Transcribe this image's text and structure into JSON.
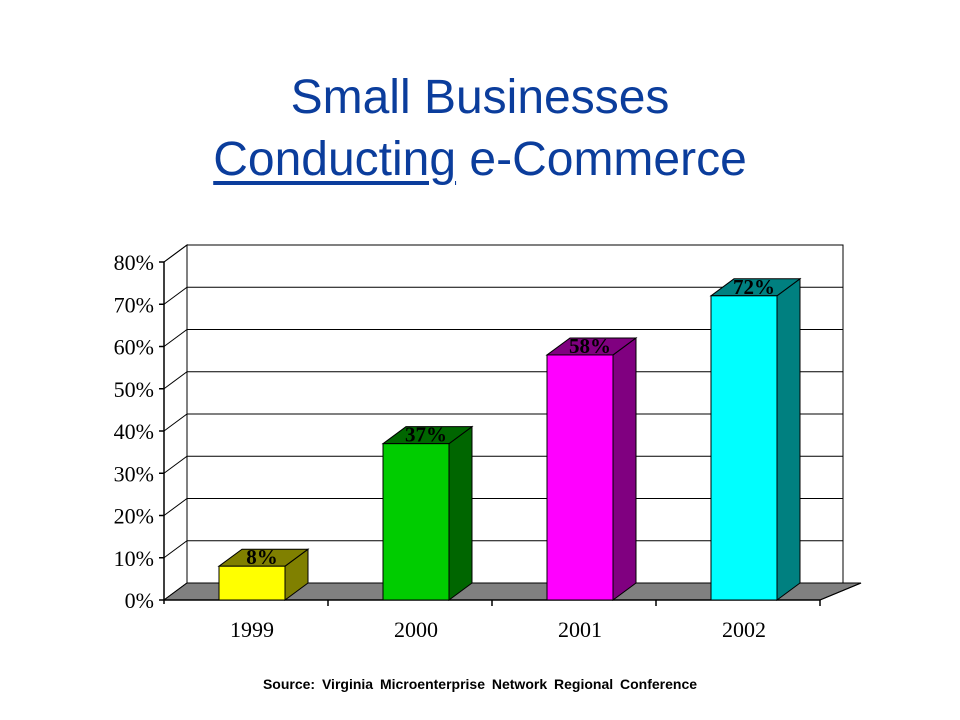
{
  "title": {
    "line1": "Small Businesses",
    "line2_underlined": "Conducting",
    "line2_rest": " e-Commerce"
  },
  "source": "Source: Virginia Microenterprise Network Regional Conference",
  "chart_data": {
    "type": "bar",
    "style": "3d",
    "categories": [
      "1999",
      "2000",
      "2001",
      "2002"
    ],
    "values": [
      8,
      37,
      58,
      72
    ],
    "data_labels": [
      "8%",
      "37%",
      "58%",
      "72%"
    ],
    "colors": [
      "#ffff00",
      "#00cc00",
      "#ff00ff",
      "#00ffff"
    ],
    "side_colors": [
      "#808000",
      "#006600",
      "#800080",
      "#008080"
    ],
    "ylim": [
      0,
      80
    ],
    "yticks": [
      0,
      10,
      20,
      30,
      40,
      50,
      60,
      70,
      80
    ],
    "ytick_labels": [
      "0%",
      "10%",
      "20%",
      "30%",
      "40%",
      "50%",
      "60%",
      "70%",
      "80%"
    ],
    "grid": true,
    "floor_color": "#808080"
  }
}
